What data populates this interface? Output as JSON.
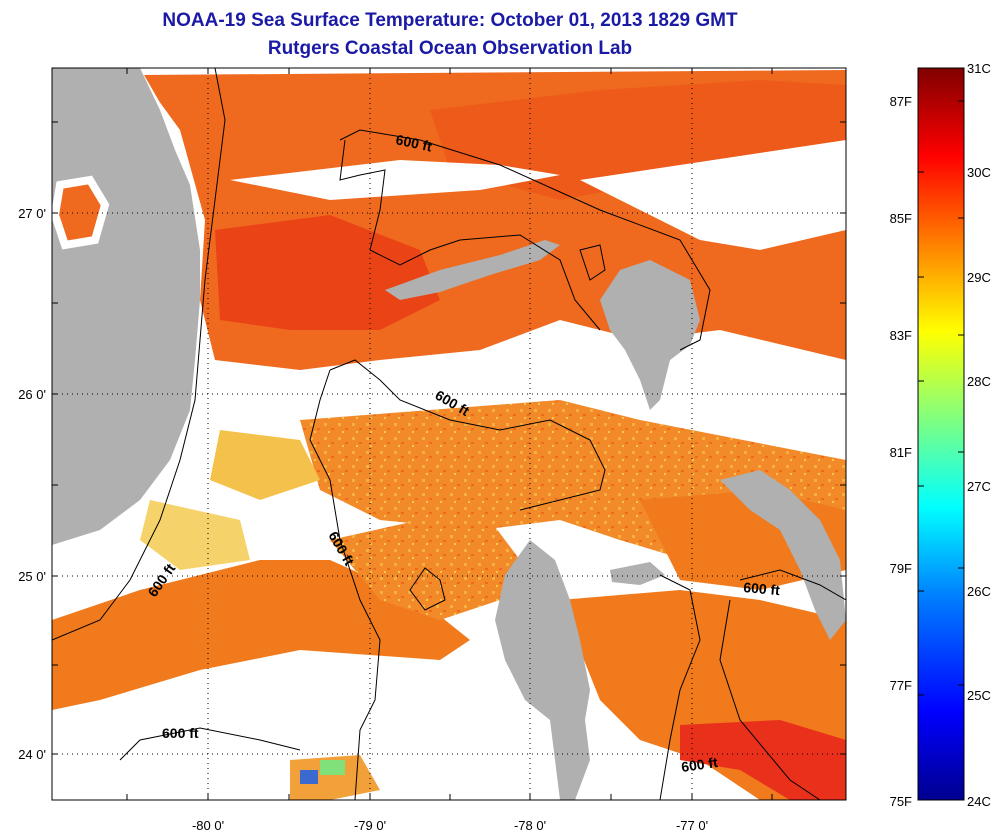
{
  "title": "NOAA-19 Sea Surface Temperature:  October 01, 2013 1829 GMT",
  "subtitle": "Rutgers Coastal Ocean Observation Lab",
  "axes": {
    "x_ticks": [
      "-80 0'",
      "-79 0'",
      "-78 0'",
      "-77 0'"
    ],
    "y_ticks": [
      "27 0'",
      "26 0'",
      "25 0'",
      "24 0'"
    ]
  },
  "colorbar": {
    "celsius": [
      "31C",
      "30C",
      "29C",
      "28C",
      "27C",
      "26C",
      "25C",
      "24C"
    ],
    "fahrenheit": [
      "87F",
      "85F",
      "83F",
      "81F",
      "79F",
      "77F",
      "75F"
    ],
    "colors": [
      "#00008f",
      "#0000ff",
      "#0080ff",
      "#00ffff",
      "#80ff80",
      "#ffff00",
      "#ff8000",
      "#ff0000",
      "#800000"
    ]
  },
  "contour_label": "600 ft",
  "colors": {
    "land": "#b0b0b0",
    "cloud": "#ffffff",
    "warm_water": "#f07a1c",
    "hot_water": "#ec4a12",
    "title": "#1a1aa6"
  }
}
